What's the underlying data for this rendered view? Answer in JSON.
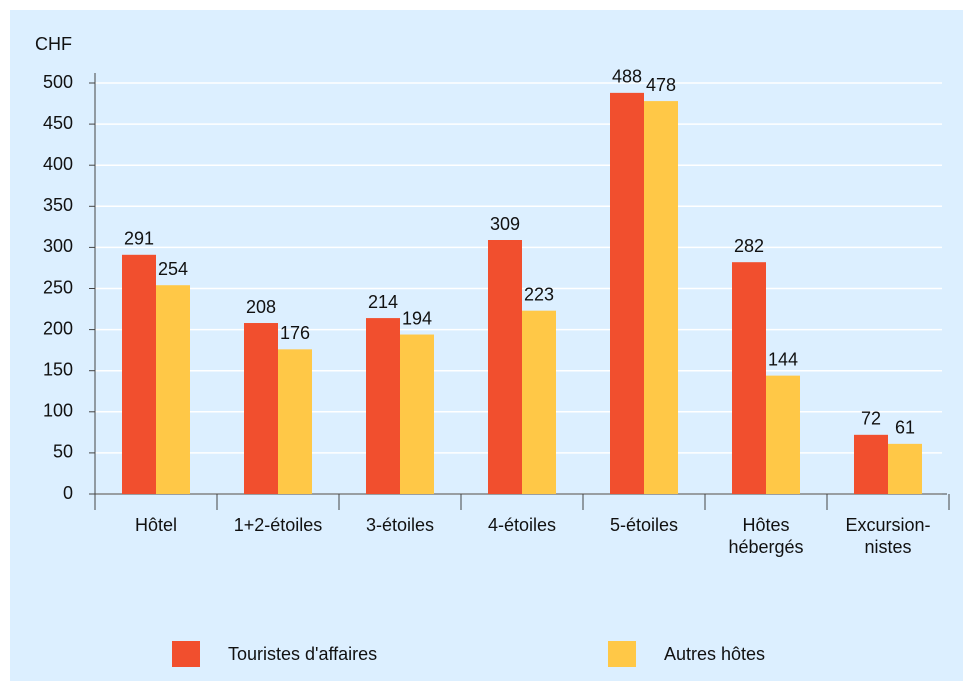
{
  "chart_data": {
    "type": "bar",
    "y_label": "CHF",
    "categories": [
      "Hôtel",
      "1+2-étoiles",
      "3-étoiles",
      "4-étoiles",
      "5-étoiles",
      "Hôtes\nhébergés",
      "Excursion-\nnistes"
    ],
    "series": [
      {
        "name": "Touristes d'affaires",
        "color": "#f14f2e",
        "values": [
          291,
          208,
          214,
          309,
          488,
          282,
          72
        ]
      },
      {
        "name": "Autres hôtes",
        "color": "#ffc847",
        "values": [
          254,
          176,
          194,
          223,
          478,
          144,
          61
        ]
      }
    ],
    "ylim": [
      0,
      500
    ],
    "yticks": [
      0,
      50,
      100,
      150,
      200,
      250,
      300,
      350,
      400,
      450,
      500
    ],
    "grid": true
  }
}
